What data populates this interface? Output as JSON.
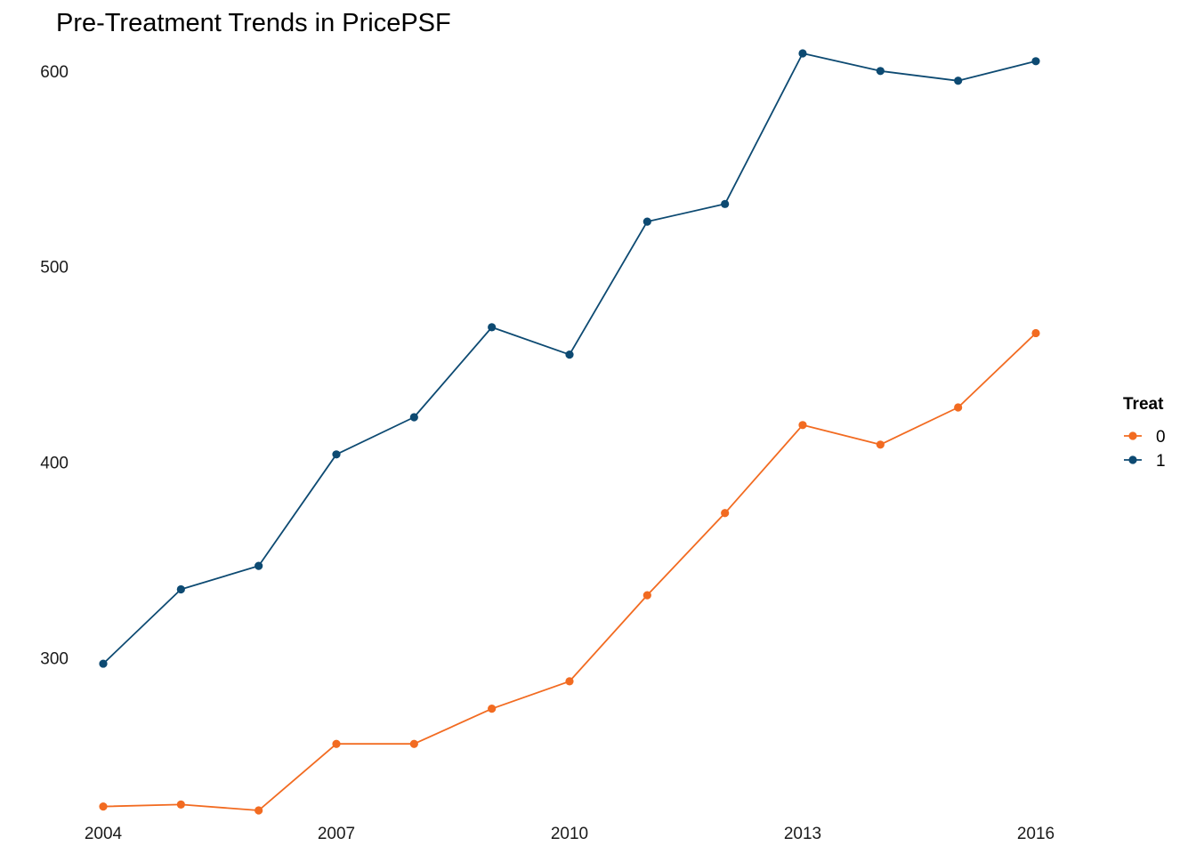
{
  "chart_data": {
    "type": "line",
    "title": "Pre-Treatment Trends in PricePSF",
    "xlabel": "",
    "ylabel": "",
    "x": [
      2004,
      2005,
      2006,
      2007,
      2008,
      2009,
      2010,
      2011,
      2012,
      2013,
      2014,
      2015,
      2016
    ],
    "x_ticks": [
      "2004",
      "2007",
      "2010",
      "2013",
      "2016"
    ],
    "y_ticks": [
      "300",
      "400",
      "500",
      "600"
    ],
    "xlim": [
      2004,
      2016
    ],
    "ylim": [
      222,
      609
    ],
    "grid": false,
    "legend": {
      "title": "Treat",
      "position": "right"
    },
    "series": [
      {
        "name": "0",
        "color": "#f26b21",
        "values": [
          224,
          225,
          222,
          256,
          256,
          274,
          288,
          332,
          374,
          419,
          409,
          428,
          466
        ]
      },
      {
        "name": "1",
        "color": "#0d4a72",
        "values": [
          297,
          335,
          347,
          404,
          423,
          469,
          455,
          523,
          532,
          609,
          600,
          595,
          605
        ]
      }
    ]
  }
}
